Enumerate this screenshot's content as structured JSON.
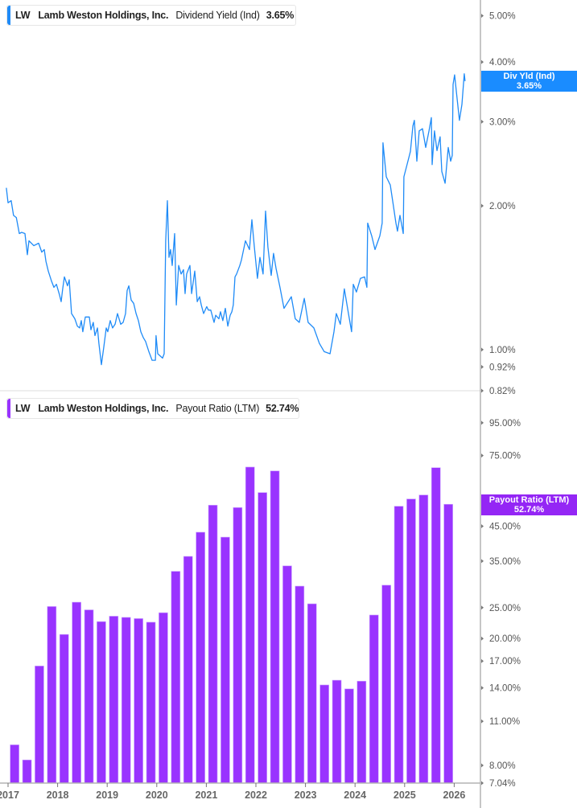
{
  "colors": {
    "yield_line": "#1f8bf7",
    "bars": "#9933ff",
    "axis": "#b3b3b3",
    "tag_yield": "#1a8cff",
    "tag_payout": "#9426f5"
  },
  "chart_data": [
    {
      "type": "line",
      "legend": {
        "ticker": "LW",
        "company": "Lamb Weston Holdings, Inc.",
        "metric": "Dividend Yield (Ind)",
        "value": "3.65%"
      },
      "last_value_tag": {
        "label": "Div Yld (Ind)",
        "value": "3.65%"
      },
      "y_scale": "log",
      "ylim": [
        0.82,
        5.4
      ],
      "y_ticks": [
        {
          "v": 5.0,
          "label": "5.00%"
        },
        {
          "v": 4.0,
          "label": "4.00%"
        },
        {
          "v": 3.0,
          "label": "3.00%"
        },
        {
          "v": 2.0,
          "label": "2.00%"
        },
        {
          "v": 1.0,
          "label": "1.00%"
        },
        {
          "v": 0.92,
          "label": "0.92%"
        },
        {
          "v": 0.82,
          "label": "0.82%"
        }
      ],
      "points": [
        [
          "2016-12-19",
          2.18
        ],
        [
          "2017-01-01",
          2.03
        ],
        [
          "2017-01-24",
          2.05
        ],
        [
          "2017-02-11",
          1.91
        ],
        [
          "2017-03-01",
          1.89
        ],
        [
          "2017-03-23",
          1.75
        ],
        [
          "2017-04-10",
          1.76
        ],
        [
          "2017-05-04",
          1.75
        ],
        [
          "2017-05-21",
          1.58
        ],
        [
          "2017-06-03",
          1.69
        ],
        [
          "2017-07-08",
          1.65
        ],
        [
          "2017-08-13",
          1.67
        ],
        [
          "2017-09-06",
          1.6
        ],
        [
          "2017-09-24",
          1.62
        ],
        [
          "2017-10-06",
          1.53
        ],
        [
          "2017-10-23",
          1.46
        ],
        [
          "2017-11-17",
          1.39
        ],
        [
          "2017-12-04",
          1.35
        ],
        [
          "2017-12-22",
          1.37
        ],
        [
          "2018-01-15",
          1.3
        ],
        [
          "2018-01-27",
          1.26
        ],
        [
          "2018-02-08",
          1.34
        ],
        [
          "2018-02-20",
          1.42
        ],
        [
          "2018-03-13",
          1.36
        ],
        [
          "2018-03-25",
          1.4
        ],
        [
          "2018-04-12",
          1.19
        ],
        [
          "2018-05-06",
          1.16
        ],
        [
          "2018-05-24",
          1.12
        ],
        [
          "2018-06-11",
          1.11
        ],
        [
          "2018-06-23",
          1.15
        ],
        [
          "2018-07-04",
          1.09
        ],
        [
          "2018-07-22",
          1.17
        ],
        [
          "2018-08-21",
          1.17
        ],
        [
          "2018-09-03",
          1.1
        ],
        [
          "2018-09-20",
          1.14
        ],
        [
          "2018-10-02",
          1.07
        ],
        [
          "2018-10-20",
          1.11
        ],
        [
          "2018-11-01",
          1.03
        ],
        [
          "2018-11-19",
          0.93
        ],
        [
          "2018-12-06",
          1.01
        ],
        [
          "2018-12-24",
          1.11
        ],
        [
          "2019-01-05",
          1.09
        ],
        [
          "2019-01-23",
          1.15
        ],
        [
          "2019-02-10",
          1.11
        ],
        [
          "2019-02-28",
          1.13
        ],
        [
          "2019-03-16",
          1.19
        ],
        [
          "2019-04-09",
          1.13
        ],
        [
          "2019-04-27",
          1.14
        ],
        [
          "2019-05-14",
          1.19
        ],
        [
          "2019-05-26",
          1.33
        ],
        [
          "2019-06-08",
          1.36
        ],
        [
          "2019-06-25",
          1.27
        ],
        [
          "2019-07-13",
          1.25
        ],
        [
          "2019-07-31",
          1.19
        ],
        [
          "2019-08-18",
          1.15
        ],
        [
          "2019-09-05",
          1.09
        ],
        [
          "2019-09-23",
          1.06
        ],
        [
          "2019-10-10",
          1.04
        ],
        [
          "2019-11-04",
          0.99
        ],
        [
          "2019-11-27",
          0.95
        ],
        [
          "2019-12-21",
          0.95
        ],
        [
          "2019-12-26",
          1.07
        ],
        [
          "2020-01-08",
          0.98
        ],
        [
          "2020-02-13",
          0.96
        ],
        [
          "2020-02-25",
          0.98
        ],
        [
          "2020-03-06",
          1.69
        ],
        [
          "2020-03-18",
          2.05
        ],
        [
          "2020-03-30",
          1.56
        ],
        [
          "2020-04-11",
          1.62
        ],
        [
          "2020-04-23",
          1.5
        ],
        [
          "2020-05-11",
          1.75
        ],
        [
          "2020-05-23",
          1.24
        ],
        [
          "2020-06-10",
          1.5
        ],
        [
          "2020-06-28",
          1.44
        ],
        [
          "2020-07-15",
          1.47
        ],
        [
          "2020-07-27",
          1.31
        ],
        [
          "2020-08-08",
          1.44
        ],
        [
          "2020-09-02",
          1.5
        ],
        [
          "2020-09-14",
          1.31
        ],
        [
          "2020-10-07",
          1.46
        ],
        [
          "2020-10-25",
          1.26
        ],
        [
          "2020-11-12",
          1.29
        ],
        [
          "2020-11-24",
          1.24
        ],
        [
          "2020-12-11",
          1.19
        ],
        [
          "2021-01-04",
          1.23
        ],
        [
          "2021-01-16",
          1.21
        ],
        [
          "2021-02-03",
          1.21
        ],
        [
          "2021-02-27",
          1.14
        ],
        [
          "2021-03-09",
          1.18
        ],
        [
          "2021-04-02",
          1.16
        ],
        [
          "2021-04-14",
          1.2
        ],
        [
          "2021-05-01",
          1.15
        ],
        [
          "2021-05-19",
          1.22
        ],
        [
          "2021-06-07",
          1.12
        ],
        [
          "2021-06-24",
          1.18
        ],
        [
          "2021-07-06",
          1.2
        ],
        [
          "2021-07-17",
          1.24
        ],
        [
          "2021-07-29",
          1.42
        ],
        [
          "2021-08-11",
          1.44
        ],
        [
          "2021-09-04",
          1.5
        ],
        [
          "2021-09-16",
          1.54
        ],
        [
          "2021-10-15",
          1.69
        ],
        [
          "2021-11-14",
          1.62
        ],
        [
          "2021-12-02",
          1.87
        ],
        [
          "2021-12-19",
          1.65
        ],
        [
          "2022-01-12",
          1.41
        ],
        [
          "2022-01-30",
          1.56
        ],
        [
          "2022-02-23",
          1.44
        ],
        [
          "2022-03-11",
          1.95
        ],
        [
          "2022-03-28",
          1.64
        ],
        [
          "2022-04-22",
          1.43
        ],
        [
          "2022-05-09",
          1.59
        ],
        [
          "2022-05-27",
          1.48
        ],
        [
          "2022-06-26",
          1.35
        ],
        [
          "2022-07-25",
          1.22
        ],
        [
          "2022-09-18",
          1.29
        ],
        [
          "2022-10-17",
          1.16
        ],
        [
          "2022-11-16",
          1.14
        ],
        [
          "2022-12-22",
          1.28
        ],
        [
          "2023-01-20",
          1.14
        ],
        [
          "2023-03-02",
          1.11
        ],
        [
          "2023-04-12",
          1.03
        ],
        [
          "2023-05-17",
          0.99
        ],
        [
          "2023-06-29",
          0.98
        ],
        [
          "2023-07-28",
          1.09
        ],
        [
          "2023-08-15",
          1.19
        ],
        [
          "2023-09-14",
          1.13
        ],
        [
          "2023-10-13",
          1.34
        ],
        [
          "2023-11-13",
          1.19
        ],
        [
          "2023-12-06",
          1.09
        ],
        [
          "2023-12-18",
          1.37
        ],
        [
          "2024-01-11",
          1.32
        ],
        [
          "2024-02-10",
          1.41
        ],
        [
          "2024-03-10",
          1.42
        ],
        [
          "2024-03-27",
          1.35
        ],
        [
          "2024-04-03",
          1.84
        ],
        [
          "2024-05-02",
          1.73
        ],
        [
          "2024-05-26",
          1.62
        ],
        [
          "2024-07-01",
          1.73
        ],
        [
          "2024-07-18",
          1.84
        ],
        [
          "2024-07-24",
          2.71
        ],
        [
          "2024-08-18",
          2.3
        ],
        [
          "2024-09-17",
          2.21
        ],
        [
          "2024-10-04",
          2.05
        ],
        [
          "2024-10-28",
          1.84
        ],
        [
          "2024-11-09",
          1.77
        ],
        [
          "2024-11-27",
          1.91
        ],
        [
          "2024-12-21",
          1.75
        ],
        [
          "2024-12-26",
          2.3
        ],
        [
          "2025-01-25",
          2.48
        ],
        [
          "2025-02-13",
          2.6
        ],
        [
          "2025-03-01",
          2.94
        ],
        [
          "2025-03-12",
          3.02
        ],
        [
          "2025-03-30",
          2.48
        ],
        [
          "2025-04-17",
          2.87
        ],
        [
          "2025-05-11",
          2.9
        ],
        [
          "2025-06-04",
          2.65
        ],
        [
          "2025-06-28",
          2.87
        ],
        [
          "2025-07-15",
          3.06
        ],
        [
          "2025-07-21",
          2.44
        ],
        [
          "2025-08-08",
          2.87
        ],
        [
          "2025-08-26",
          2.61
        ],
        [
          "2025-09-19",
          2.79
        ],
        [
          "2025-10-01",
          2.36
        ],
        [
          "2025-10-25",
          2.23
        ],
        [
          "2025-11-18",
          2.65
        ],
        [
          "2025-12-05",
          2.48
        ],
        [
          "2025-12-17",
          2.55
        ],
        [
          "2025-12-23",
          3.59
        ],
        [
          "2026-01-04",
          3.76
        ],
        [
          "2026-01-16",
          3.48
        ],
        [
          "2026-02-09",
          3.02
        ],
        [
          "2026-02-27",
          3.26
        ],
        [
          "2026-03-14",
          3.78
        ],
        [
          "2026-03-20",
          3.65
        ]
      ]
    },
    {
      "type": "bar",
      "legend": {
        "ticker": "LW",
        "company": "Lamb Weston Holdings, Inc.",
        "metric": "Payout Ratio (LTM)",
        "value": "52.74%"
      },
      "last_value_tag": {
        "label": "Payout Ratio (LTM)",
        "value": "52.74%"
      },
      "y_scale": "log",
      "ylim": [
        7.04,
        117
      ],
      "y_ticks": [
        {
          "v": 95,
          "label": "95.00%"
        },
        {
          "v": 75,
          "label": "75.00%"
        },
        {
          "v": 45,
          "label": "45.00%"
        },
        {
          "v": 35,
          "label": "35.00%"
        },
        {
          "v": 25,
          "label": "25.00%"
        },
        {
          "v": 20,
          "label": "20.00%"
        },
        {
          "v": 17,
          "label": "17.00%"
        },
        {
          "v": 14,
          "label": "14.00%"
        },
        {
          "v": 11,
          "label": "11.00%"
        },
        {
          "v": 8,
          "label": "8.00%"
        },
        {
          "v": 7.04,
          "label": "7.04%"
        }
      ],
      "categories": [
        "2017-02",
        "2017-05",
        "2017-08",
        "2017-11",
        "2018-02",
        "2018-05",
        "2018-08",
        "2018-11",
        "2019-02",
        "2019-05",
        "2019-08",
        "2019-11",
        "2020-02",
        "2020-05",
        "2020-08",
        "2020-11",
        "2021-02",
        "2021-05",
        "2021-08",
        "2021-11",
        "2022-02",
        "2022-05",
        "2022-08",
        "2022-11",
        "2023-02",
        "2023-05",
        "2023-08",
        "2023-11",
        "2024-02",
        "2024-05",
        "2024-08",
        "2024-11",
        "2025-02",
        "2025-05",
        "2025-08",
        "2025-11"
      ],
      "values": [
        9.28,
        8.32,
        16.4,
        25.2,
        20.6,
        26.0,
        24.6,
        22.6,
        23.5,
        23.3,
        23.1,
        22.5,
        24.1,
        32.5,
        36.2,
        43.1,
        52.4,
        41.6,
        51.5,
        69.0,
        57.4,
        67.1,
        33.8,
        29.2,
        25.7,
        14.3,
        14.8,
        13.9,
        14.7,
        23.7,
        29.4,
        52.0,
        54.8,
        56.4,
        68.7,
        52.74
      ]
    }
  ],
  "x_axis": {
    "ticks": [
      "2017",
      "2018",
      "2019",
      "2020",
      "2021",
      "2022",
      "2023",
      "2024",
      "2025",
      "2026"
    ]
  }
}
